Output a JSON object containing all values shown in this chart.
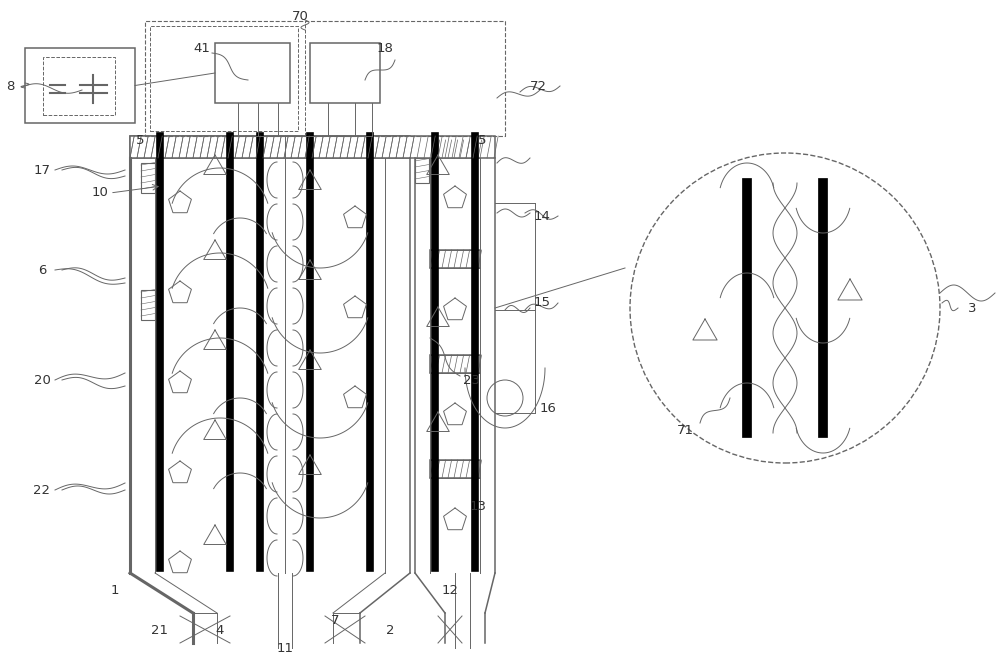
{
  "bg_color": "#ffffff",
  "line_color": "#666666",
  "dark_color": "#000000",
  "label_color": "#333333",
  "fig_width": 10.0,
  "fig_height": 6.58,
  "lw_thin": 0.7,
  "lw_med": 1.1,
  "lw_thick": 2.2,
  "lw_elec": 5.5
}
